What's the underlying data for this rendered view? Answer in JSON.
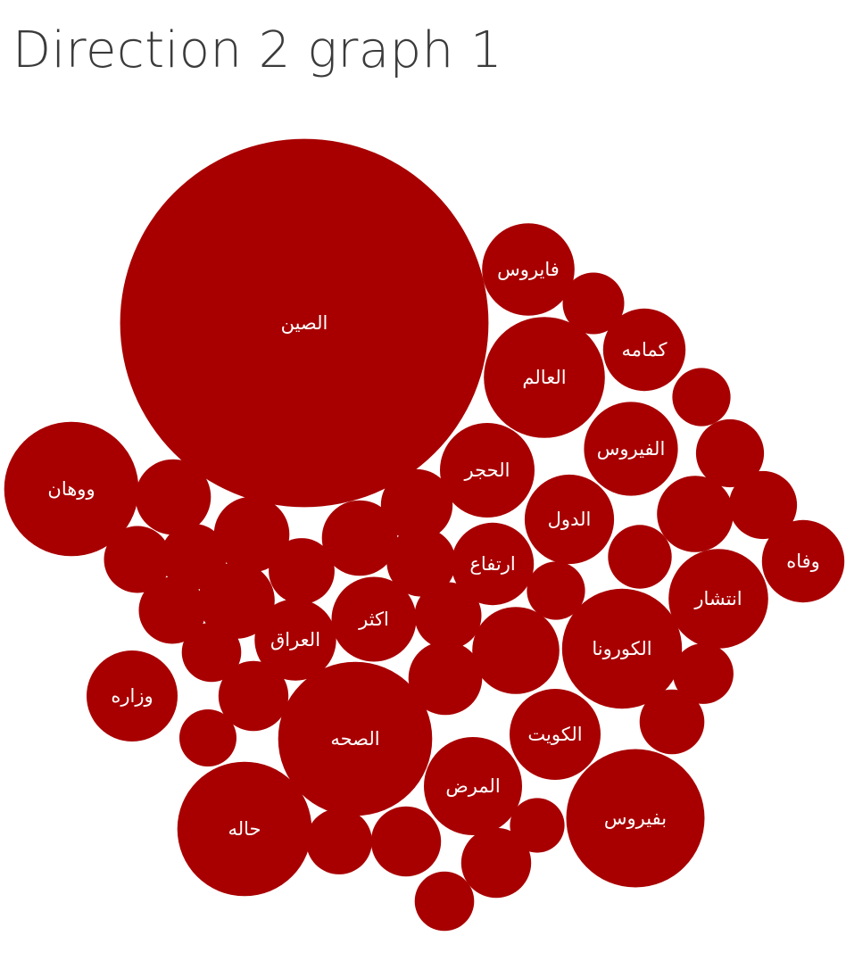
{
  "title": "Direction 2 graph 1",
  "colors": {
    "bubble": "#a80000",
    "label": "#ffffff",
    "title": "#3b3b3b"
  },
  "chart_data": {
    "type": "packed_bubble",
    "title": "Direction 2 graph 1",
    "bubbles": [
      {
        "label": "الصين",
        "value": 100
      },
      {
        "label": "ووهان",
        "value": 13.3
      },
      {
        "label": "الصحه",
        "value": 17.5
      },
      {
        "label": "حاله",
        "value": 13.3
      },
      {
        "label": "بفيروس",
        "value": 14.1
      },
      {
        "label": "العالم",
        "value": 10.8
      },
      {
        "label": "الكورونا",
        "value": 10.6
      },
      {
        "label": "انتشار",
        "value": 7.3
      },
      {
        "label": "المرض",
        "value": 7.1
      },
      {
        "label": "الحجر",
        "value": 6.6
      },
      {
        "label": "الفيروس",
        "value": 6.5
      },
      {
        "label": "فايروس",
        "value": 6.3
      },
      {
        "label": "الكويت",
        "value": 6.1
      },
      {
        "label": "وزاره",
        "value": 6.1
      },
      {
        "label": "الدول",
        "value": 5.9
      },
      {
        "label": "العراق",
        "value": 4.9
      },
      {
        "label": "اكثر",
        "value": 5.3
      },
      {
        "label": "ارتفاع",
        "value": 5.0
      },
      {
        "label": "كمامه",
        "value": 5.0
      },
      {
        "label": "وفاه",
        "value": 5.0
      },
      {
        "label": "",
        "value": 5.6
      },
      {
        "label": "",
        "value": 4.2
      },
      {
        "label": "",
        "value": 4.2
      },
      {
        "label": "",
        "value": 4.2
      },
      {
        "label": "",
        "value": 4.3
      },
      {
        "label": "",
        "value": 3.3
      },
      {
        "label": "",
        "value": 3.2
      },
      {
        "label": "",
        "value": 3.2
      },
      {
        "label": "",
        "value": 3.8
      },
      {
        "label": "",
        "value": 3.5
      },
      {
        "label": "",
        "value": 3.3
      },
      {
        "label": "",
        "value": 4.3
      },
      {
        "label": "",
        "value": 3.3
      },
      {
        "label": "",
        "value": 2.6
      },
      {
        "label": "",
        "value": 4.0
      },
      {
        "label": "",
        "value": 3.0
      },
      {
        "label": "",
        "value": 2.5
      },
      {
        "label": "",
        "value": 3.6
      },
      {
        "label": "",
        "value": 2.8
      },
      {
        "label": "",
        "value": 2.5
      },
      {
        "label": "",
        "value": 3.4
      },
      {
        "label": "",
        "value": 3.4
      },
      {
        "label": "",
        "value": 2.7
      },
      {
        "label": "",
        "value": 3.1
      },
      {
        "label": "",
        "value": 2.4
      },
      {
        "label": "",
        "value": 3.2
      },
      {
        "label": "",
        "value": 3.6
      },
      {
        "label": "",
        "value": 2.6
      },
      {
        "label": "",
        "value": 3.6
      },
      {
        "label": "",
        "value": 2.2
      },
      {
        "label": "",
        "value": 2.5
      },
      {
        "label": "",
        "value": 2.7
      },
      {
        "label": "",
        "value": 2.7
      }
    ]
  }
}
